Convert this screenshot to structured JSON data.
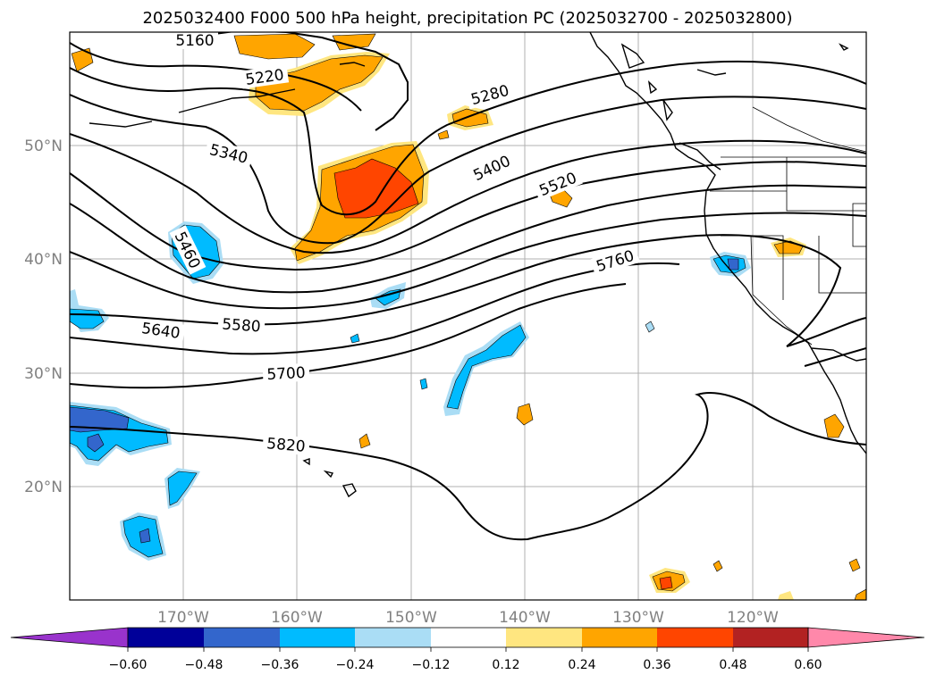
{
  "title": "2025032400 F000 500 hPa height, precipitation PC (2025032700 - 2025032800)",
  "map": {
    "lon_labels": [
      "170°W",
      "160°W",
      "150°W",
      "140°W",
      "130°W",
      "120°W"
    ],
    "lat_labels": [
      "50°N",
      "40°N",
      "30°N",
      "20°N"
    ],
    "gridlines": true
  },
  "height_contours": {
    "labels": [
      "5160",
      "5220",
      "5280",
      "5340",
      "5400",
      "5460",
      "5520",
      "5580",
      "5640",
      "5700",
      "5760",
      "5820"
    ]
  },
  "colorbar": {
    "tick_labels": [
      "−0.60",
      "−0.48",
      "−0.36",
      "−0.24",
      "−0.12",
      "0.12",
      "0.24",
      "0.36",
      "0.48",
      "0.60"
    ],
    "colors": [
      "#9933cc",
      "#000099",
      "#3366cc",
      "#00bbff",
      "#aaddf5",
      "#ffffff",
      "#ffe680",
      "#ffa500",
      "#ff4500",
      "#b22222",
      "#ff88aa"
    ],
    "extend": "both"
  }
}
